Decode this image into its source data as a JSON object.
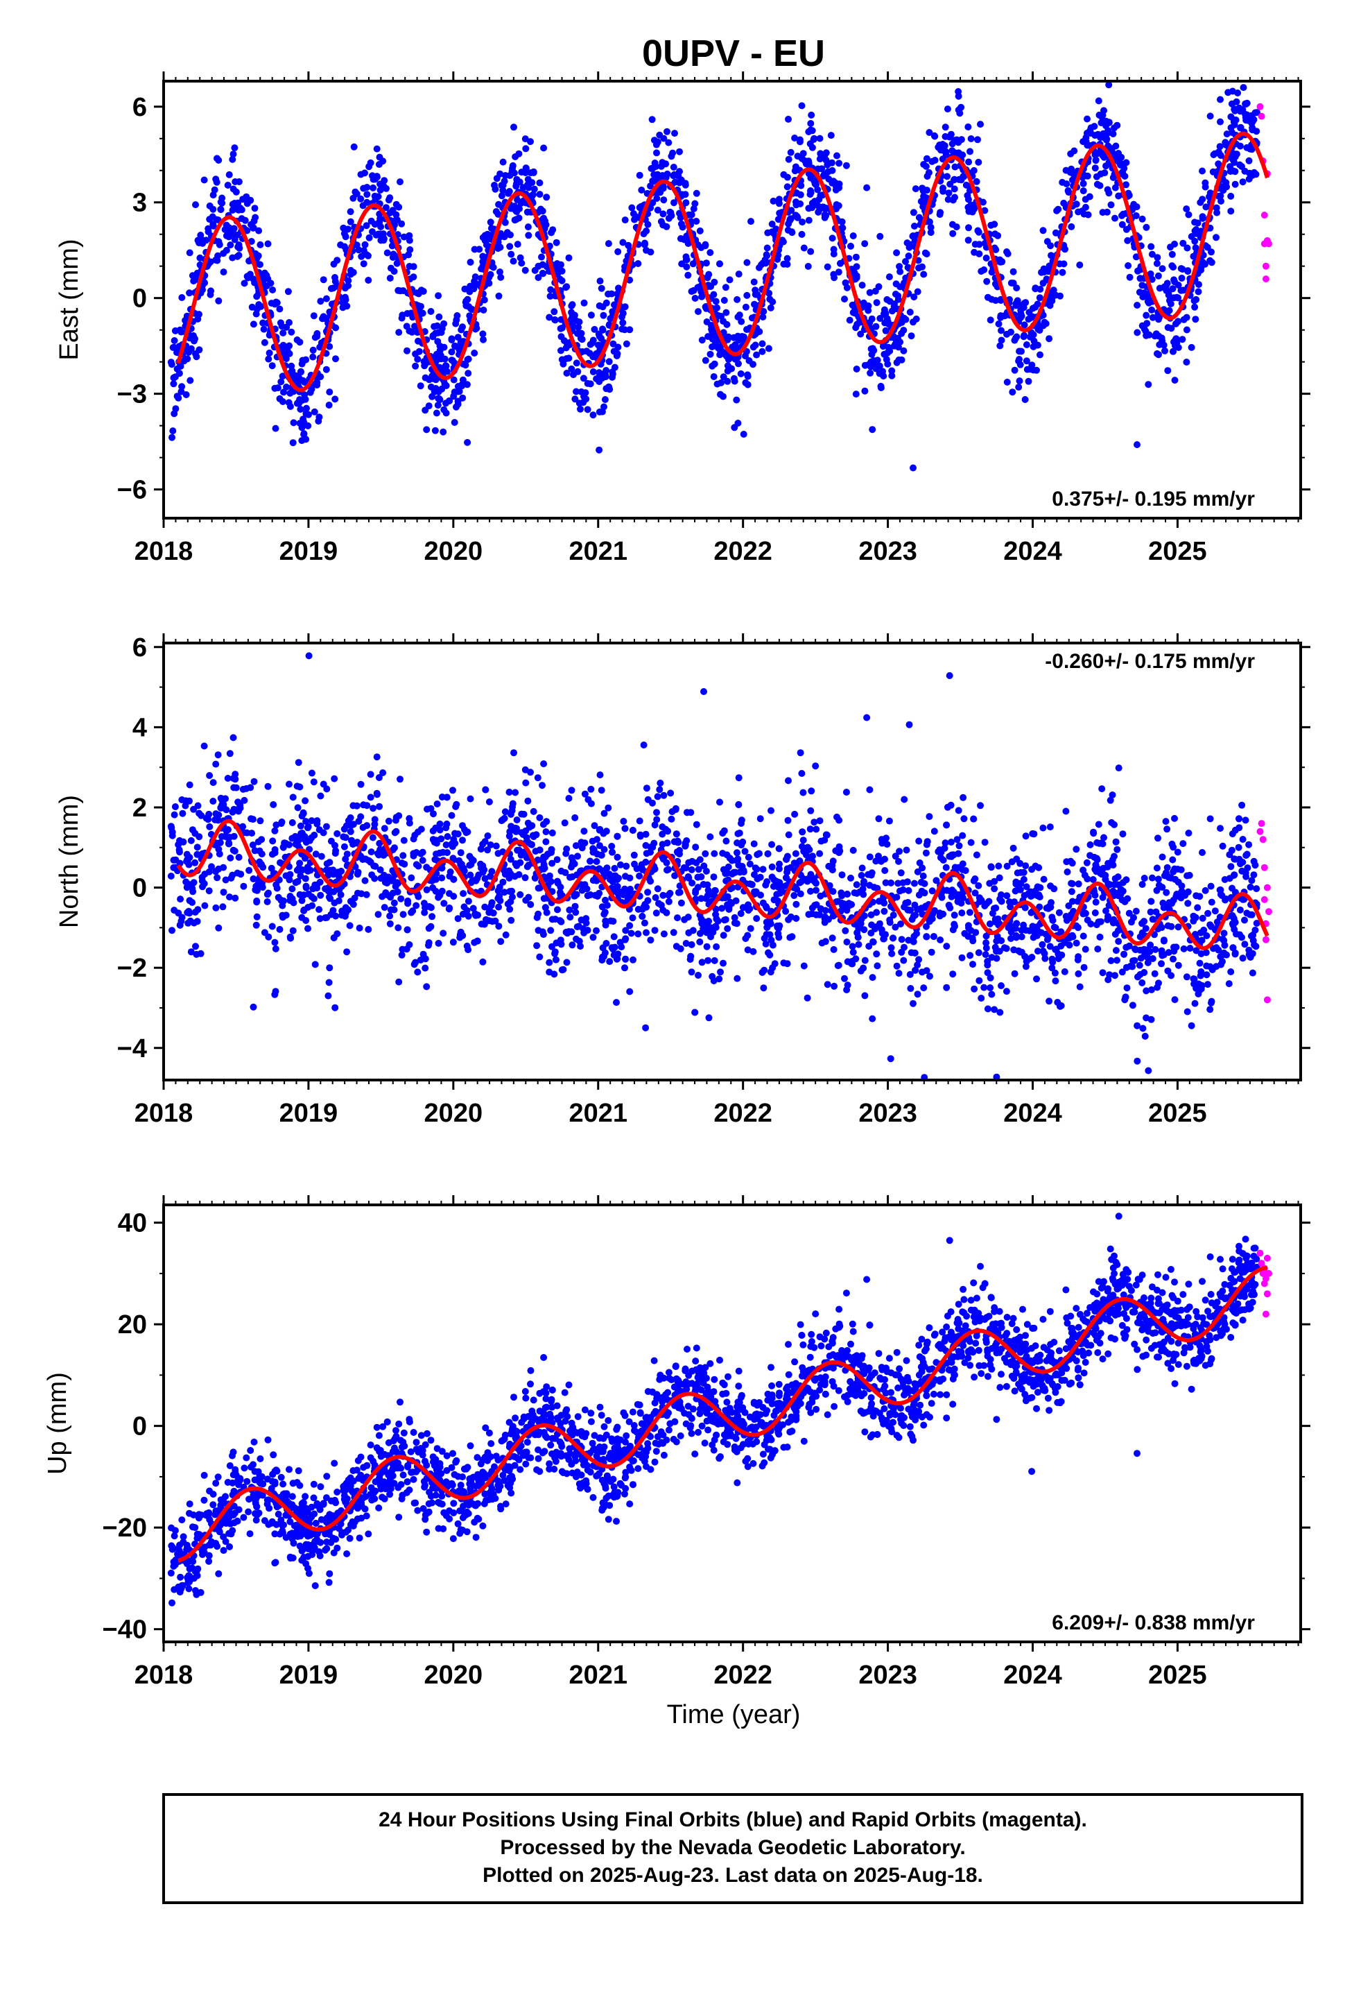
{
  "chart_data": [
    {
      "type": "scatter",
      "title": "0UPV - EU",
      "xlabel": "",
      "ylabel": "East (mm)",
      "xlim": [
        2018.0,
        2025.85
      ],
      "ylim": [
        -6.9,
        6.8
      ],
      "xticks": [
        2018,
        2019,
        2020,
        2021,
        2022,
        2023,
        2024,
        2025
      ],
      "yticks": [
        -6,
        -3,
        0,
        3,
        6
      ],
      "rate_label": "0.375+/- 0.195 mm/yr",
      "rate_position": "bottom-right",
      "grid": false,
      "model": {
        "x0": 2018.1,
        "xend": 2025.62,
        "intercept": -0.4,
        "slope": 0.375,
        "annual_amp": 2.8,
        "annual_phase_peak": 0.45,
        "semiannual_amp": 0.0
      },
      "series": [
        {
          "role": "final",
          "color": "#0000ff",
          "x_start": 2018.05,
          "x_end": 2025.55,
          "count": 2700,
          "noise": 0.9,
          "outliers": 0.04
        },
        {
          "role": "rapid",
          "color": "#ff00ff",
          "x": [
            2025.57,
            2025.58,
            2025.59,
            2025.6,
            2025.6,
            2025.61,
            2025.61,
            2025.62,
            2025.62,
            2025.63
          ],
          "y": [
            6.0,
            5.7,
            4.3,
            2.6,
            1.7,
            1.0,
            0.6,
            1.8,
            3.9,
            1.7
          ]
        }
      ]
    },
    {
      "type": "scatter",
      "title": "",
      "xlabel": "",
      "ylabel": "North (mm)",
      "xlim": [
        2018.0,
        2025.85
      ],
      "ylim": [
        -4.8,
        6.1
      ],
      "xticks": [
        2018,
        2019,
        2020,
        2021,
        2022,
        2023,
        2024,
        2025
      ],
      "yticks": [
        -4,
        -2,
        0,
        2,
        4,
        6
      ],
      "rate_label": "-0.260+/- 0.175 mm/yr",
      "rate_position": "top-right",
      "grid": false,
      "model": {
        "x0": 2018.1,
        "xend": 2025.62,
        "intercept": 0.9,
        "slope": -0.26,
        "annual_amp": 0.3,
        "annual_phase_peak": 0.45,
        "semiannual_amp": 0.55,
        "semiannual_phase_peak": 0.45
      },
      "series": [
        {
          "role": "final",
          "color": "#0000ff",
          "x_start": 2018.05,
          "x_end": 2025.55,
          "count": 2700,
          "noise": 0.95,
          "outliers": 0.04
        },
        {
          "role": "rapid",
          "color": "#ff00ff",
          "x": [
            2025.57,
            2025.58,
            2025.59,
            2025.6,
            2025.6,
            2025.61,
            2025.61,
            2025.62,
            2025.62,
            2025.63
          ],
          "y": [
            1.4,
            1.6,
            1.2,
            0.5,
            -0.3,
            -0.9,
            -1.3,
            -2.8,
            0.0,
            -0.6
          ]
        }
      ]
    },
    {
      "type": "scatter",
      "title": "",
      "xlabel": "Time (year)",
      "ylabel": "Up (mm)",
      "xlim": [
        2018.0,
        2025.85
      ],
      "ylim": [
        -42.5,
        43.5
      ],
      "xticks": [
        2018,
        2019,
        2020,
        2021,
        2022,
        2023,
        2024,
        2025
      ],
      "yticks": [
        -40,
        -20,
        0,
        20,
        40
      ],
      "rate_label": "6.209+/- 0.838 mm/yr",
      "rate_position": "bottom-right",
      "grid": false,
      "model": {
        "x0": 2018.1,
        "xend": 2025.62,
        "intercept": -21.0,
        "slope": 6.209,
        "annual_amp": 5.5,
        "annual_phase_peak": 0.6,
        "semiannual_amp": 0.0
      },
      "series": [
        {
          "role": "final",
          "color": "#0000ff",
          "x_start": 2018.05,
          "x_end": 2025.55,
          "count": 2700,
          "noise": 4.2,
          "outliers": 0.03
        },
        {
          "role": "rapid",
          "color": "#ff00ff",
          "x": [
            2025.57,
            2025.58,
            2025.59,
            2025.6,
            2025.6,
            2025.61,
            2025.61,
            2025.62,
            2025.62,
            2025.63
          ],
          "y": [
            34,
            32,
            30,
            28,
            31,
            29,
            22,
            26,
            33,
            30
          ]
        }
      ]
    }
  ],
  "footer": {
    "line1": "24 Hour Positions Using Final Orbits (blue) and Rapid Orbits (magenta).",
    "line2": "Processed by the Nevada Geodetic Laboratory.",
    "line3": "Plotted on 2025-Aug-23. Last data on 2025-Aug-18."
  },
  "colors": {
    "final": "#0000ff",
    "rapid": "#ff00ff",
    "model": "#ff0000",
    "frame": "#000000"
  }
}
